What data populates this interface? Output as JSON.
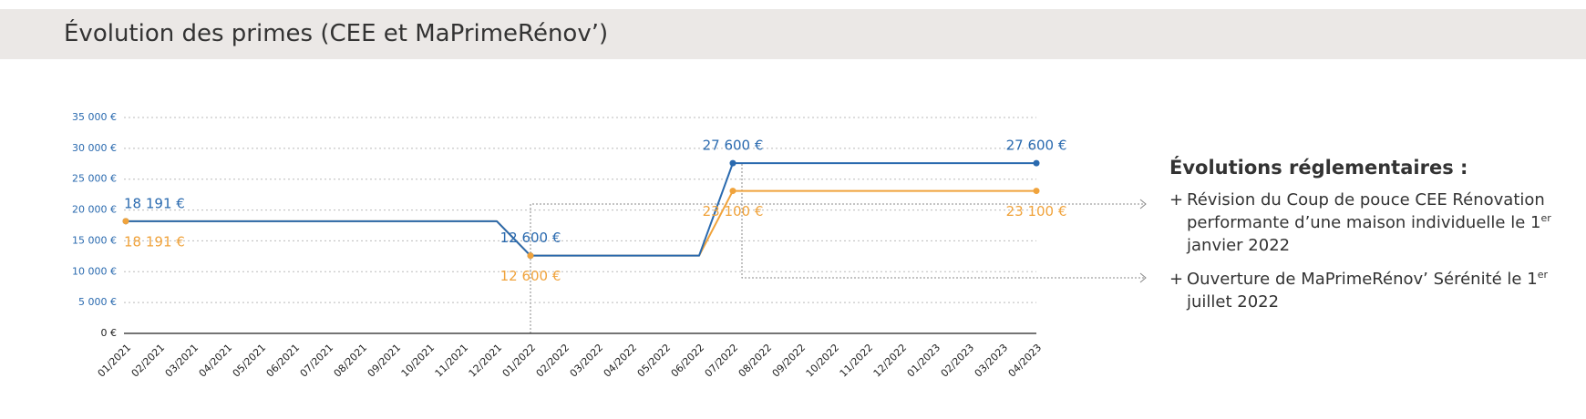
{
  "header": {
    "title": "Évolution des primes (CEE et MaPrimeRénov’)"
  },
  "chart_data": {
    "type": "line",
    "categories": [
      "01/2021",
      "02/2021",
      "03/2021",
      "04/2021",
      "05/2021",
      "06/2021",
      "07/2021",
      "08/2021",
      "09/2021",
      "10/2021",
      "11/2021",
      "12/2021",
      "01/2022",
      "02/2022",
      "03/2022",
      "04/2022",
      "05/2022",
      "06/2022",
      "07/2022",
      "08/2022",
      "09/2022",
      "10/2022",
      "11/2022",
      "12/2022",
      "01/2023",
      "02/2023",
      "03/2023",
      "04/2023"
    ],
    "series": [
      {
        "name": "MaPrimeRénov’",
        "color": "#2a6aaf",
        "values": [
          18191,
          18191,
          18191,
          18191,
          18191,
          18191,
          18191,
          18191,
          18191,
          18191,
          18191,
          18191,
          12600,
          12600,
          12600,
          12600,
          12600,
          12600,
          27600,
          27600,
          27600,
          27600,
          27600,
          27600,
          27600,
          27600,
          27600,
          27600
        ],
        "value_labels": [
          "18 191 €",
          null,
          null,
          null,
          null,
          null,
          null,
          null,
          null,
          null,
          null,
          null,
          "12 600 €",
          null,
          null,
          null,
          null,
          null,
          "27 600 €",
          null,
          null,
          null,
          null,
          null,
          null,
          null,
          null,
          "27 600 €"
        ]
      },
      {
        "name": "CEE",
        "color": "#f0a33c",
        "values": [
          18191,
          18191,
          18191,
          18191,
          18191,
          18191,
          18191,
          18191,
          18191,
          18191,
          18191,
          18191,
          12600,
          12600,
          12600,
          12600,
          12600,
          12600,
          23100,
          23100,
          23100,
          23100,
          23100,
          23100,
          23100,
          23100,
          23100,
          23100
        ],
        "value_labels": [
          "18 191 €",
          null,
          null,
          null,
          null,
          null,
          null,
          null,
          null,
          null,
          null,
          null,
          "12 600 €",
          null,
          null,
          null,
          null,
          null,
          "23 100 €",
          null,
          null,
          null,
          null,
          null,
          null,
          null,
          null,
          "23 100 €"
        ]
      }
    ],
    "ylim": [
      0,
      35000
    ],
    "yticks": [
      {
        "value": 0,
        "label": "0 €"
      },
      {
        "value": 5000,
        "label": "5 000 €"
      },
      {
        "value": 10000,
        "label": "10 000 €"
      },
      {
        "value": 15000,
        "label": "15 000 €"
      },
      {
        "value": 20000,
        "label": "20 000 €"
      },
      {
        "value": 25000,
        "label": "25 000 €"
      },
      {
        "value": 30000,
        "label": "30 000 €"
      },
      {
        "value": 35000,
        "label": "35 000 €"
      }
    ],
    "grid": true
  },
  "sidebar": {
    "title": "Évolutions réglementaires :",
    "notes": [
      {
        "marker": "+",
        "parts": [
          "Révision du Coup de pouce CEE Rénovation performante d’une maison individuelle le 1",
          "er",
          " janvier 2022"
        ]
      },
      {
        "marker": "+",
        "parts": [
          "Ouverture de MaPrimeRénov’ Sérénité le 1",
          "er",
          " juillet 2022"
        ]
      }
    ]
  }
}
